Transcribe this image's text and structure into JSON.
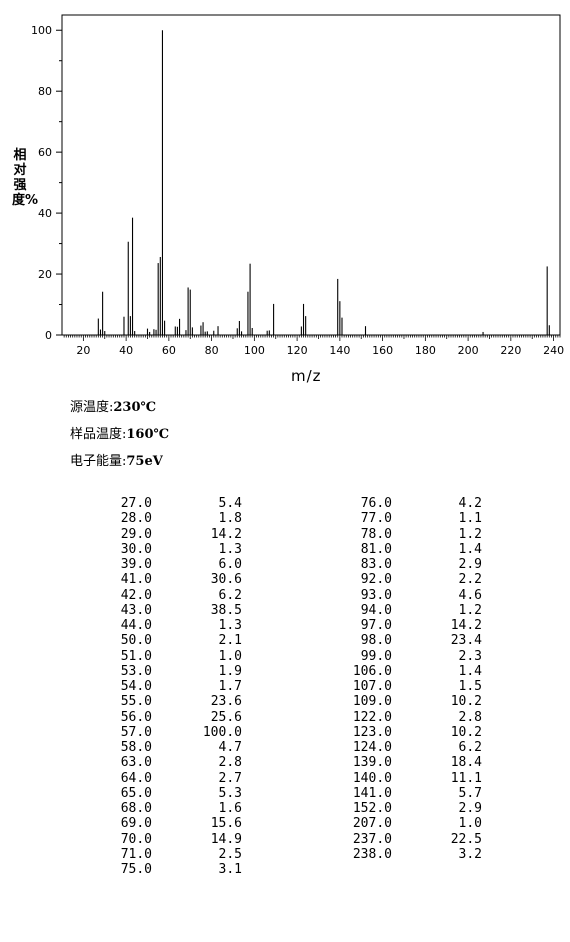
{
  "chart_data": {
    "type": "bar",
    "title": "",
    "xlabel": "m/z",
    "ylabel": "相对强度%",
    "xlim": [
      10,
      243
    ],
    "ylim": [
      0,
      105
    ],
    "xticks": [
      20,
      40,
      60,
      80,
      100,
      120,
      140,
      160,
      180,
      200,
      220,
      240
    ],
    "yticks": [
      0,
      20,
      40,
      60,
      80,
      100
    ],
    "x": [
      27,
      28,
      29,
      30,
      39,
      41,
      42,
      43,
      44,
      50,
      51,
      53,
      54,
      55,
      56,
      57,
      58,
      63,
      64,
      65,
      68,
      69,
      70,
      71,
      75,
      76,
      77,
      78,
      81,
      83,
      92,
      93,
      94,
      97,
      98,
      99,
      106,
      107,
      109,
      122,
      123,
      124,
      139,
      140,
      141,
      152,
      207,
      237,
      238
    ],
    "values": [
      5.4,
      1.8,
      14.2,
      1.3,
      6.0,
      30.6,
      6.2,
      38.5,
      1.3,
      2.1,
      1.0,
      1.9,
      1.7,
      23.6,
      25.6,
      100.0,
      4.7,
      2.8,
      2.7,
      5.3,
      1.6,
      15.6,
      14.9,
      2.5,
      3.1,
      4.2,
      1.1,
      1.2,
      1.4,
      2.9,
      2.2,
      4.6,
      1.2,
      14.2,
      23.4,
      2.3,
      1.4,
      1.5,
      10.2,
      2.8,
      10.2,
      6.2,
      18.4,
      11.1,
      5.7,
      2.9,
      1.0,
      22.5,
      3.2
    ]
  },
  "conditions": {
    "source_temp_label": "源温度:",
    "source_temp_value": "230℃",
    "sample_temp_label": "样品温度:",
    "sample_temp_value": "160℃",
    "energy_label": "电子能量:",
    "energy_value": "75eV"
  },
  "table": {
    "left": {
      "mz": [
        "27.0",
        "28.0",
        "29.0",
        "30.0",
        "39.0",
        "41.0",
        "42.0",
        "43.0",
        "44.0",
        "50.0",
        "51.0",
        "53.0",
        "54.0",
        "55.0",
        "56.0",
        "57.0",
        "58.0",
        "63.0",
        "64.0",
        "65.0",
        "68.0",
        "69.0",
        "70.0",
        "71.0",
        "75.0"
      ],
      "intensity": [
        "5.4",
        "1.8",
        "14.2",
        "1.3",
        "6.0",
        "30.6",
        "6.2",
        "38.5",
        "1.3",
        "2.1",
        "1.0",
        "1.9",
        "1.7",
        "23.6",
        "25.6",
        "100.0",
        "4.7",
        "2.8",
        "2.7",
        "5.3",
        "1.6",
        "15.6",
        "14.9",
        "2.5",
        "3.1"
      ]
    },
    "right": {
      "mz": [
        "76.0",
        "77.0",
        "78.0",
        "81.0",
        "83.0",
        "92.0",
        "93.0",
        "94.0",
        "97.0",
        "98.0",
        "99.0",
        "106.0",
        "107.0",
        "109.0",
        "122.0",
        "123.0",
        "124.0",
        "139.0",
        "140.0",
        "141.0",
        "152.0",
        "207.0",
        "237.0",
        "238.0"
      ],
      "intensity": [
        "4.2",
        "1.1",
        "1.2",
        "1.4",
        "2.9",
        "2.2",
        "4.6",
        "1.2",
        "14.2",
        "23.4",
        "2.3",
        "1.4",
        "1.5",
        "10.2",
        "2.8",
        "10.2",
        "6.2",
        "18.4",
        "11.1",
        "5.7",
        "2.9",
        "1.0",
        "22.5",
        "3.2"
      ]
    }
  }
}
